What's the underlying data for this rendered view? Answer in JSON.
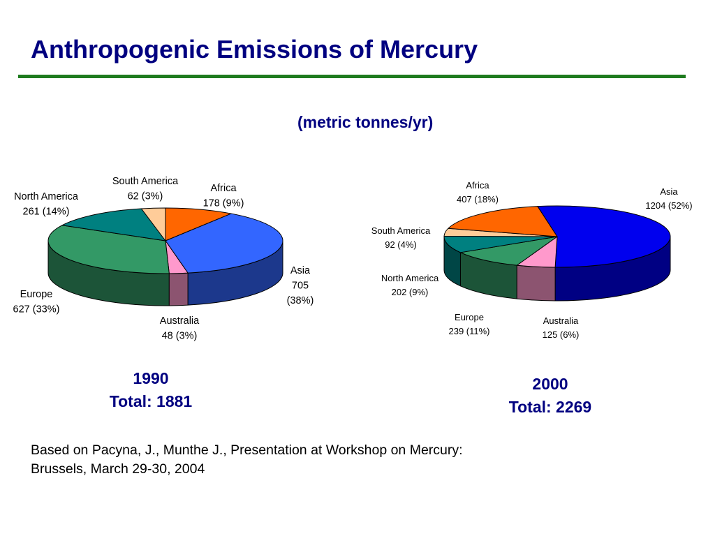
{
  "title": "Anthropogenic Emissions of Mercury",
  "subtitle": "(metric tonnes/yr)",
  "source_line1": "Based on  Pacyna, J., Munthe J., Presentation at Workshop on Mercury:",
  "source_line2": "Brussels, March 29-30, 2004",
  "colors": {
    "title": "#000080",
    "rule": "#1e7b1e",
    "Africa": "#ff6600",
    "Asia_1990": "#3366ff",
    "Asia_2000": "#0000ee",
    "Australia": "#ff99cc",
    "Europe": "#339966",
    "North America": "#008080",
    "South America": "#ffcc99"
  },
  "chart_data": [
    {
      "type": "pie",
      "variant": "3d",
      "year": "1990",
      "total_label": "Total:  1881",
      "total": 1881,
      "slices": [
        {
          "name": "Africa",
          "value": 178,
          "label_lines": [
            "Africa",
            "178 (9%)"
          ]
        },
        {
          "name": "Asia",
          "value": 705,
          "label_lines": [
            "Asia",
            "705",
            "(38%)"
          ]
        },
        {
          "name": "Australia",
          "value": 48,
          "label_lines": [
            "Australia",
            "48 (3%)"
          ]
        },
        {
          "name": "Europe",
          "value": 627,
          "label_lines": [
            "Europe",
            "627 (33%)"
          ]
        },
        {
          "name": "North America",
          "value": 261,
          "label_lines": [
            "North America",
            "261 (14%)"
          ]
        },
        {
          "name": "South America",
          "value": 62,
          "label_lines": [
            "South America",
            "62 (3%)"
          ]
        }
      ]
    },
    {
      "type": "pie",
      "variant": "3d",
      "year": "2000",
      "total_label": "Total:  2269",
      "total": 2269,
      "slices": [
        {
          "name": "Asia",
          "value": 1204,
          "label_lines": [
            "Asia",
            "1204 (52%)"
          ]
        },
        {
          "name": "Australia",
          "value": 125,
          "label_lines": [
            "Australia",
            "125 (6%)"
          ]
        },
        {
          "name": "Europe",
          "value": 239,
          "label_lines": [
            "Europe",
            "239 (11%)"
          ]
        },
        {
          "name": "North America",
          "value": 202,
          "label_lines": [
            "North America",
            "202 (9%)"
          ]
        },
        {
          "name": "South America",
          "value": 92,
          "label_lines": [
            "South America",
            "92 (4%)"
          ]
        },
        {
          "name": "Africa",
          "value": 407,
          "label_lines": [
            "Africa",
            "407  (18%)"
          ]
        }
      ]
    }
  ]
}
